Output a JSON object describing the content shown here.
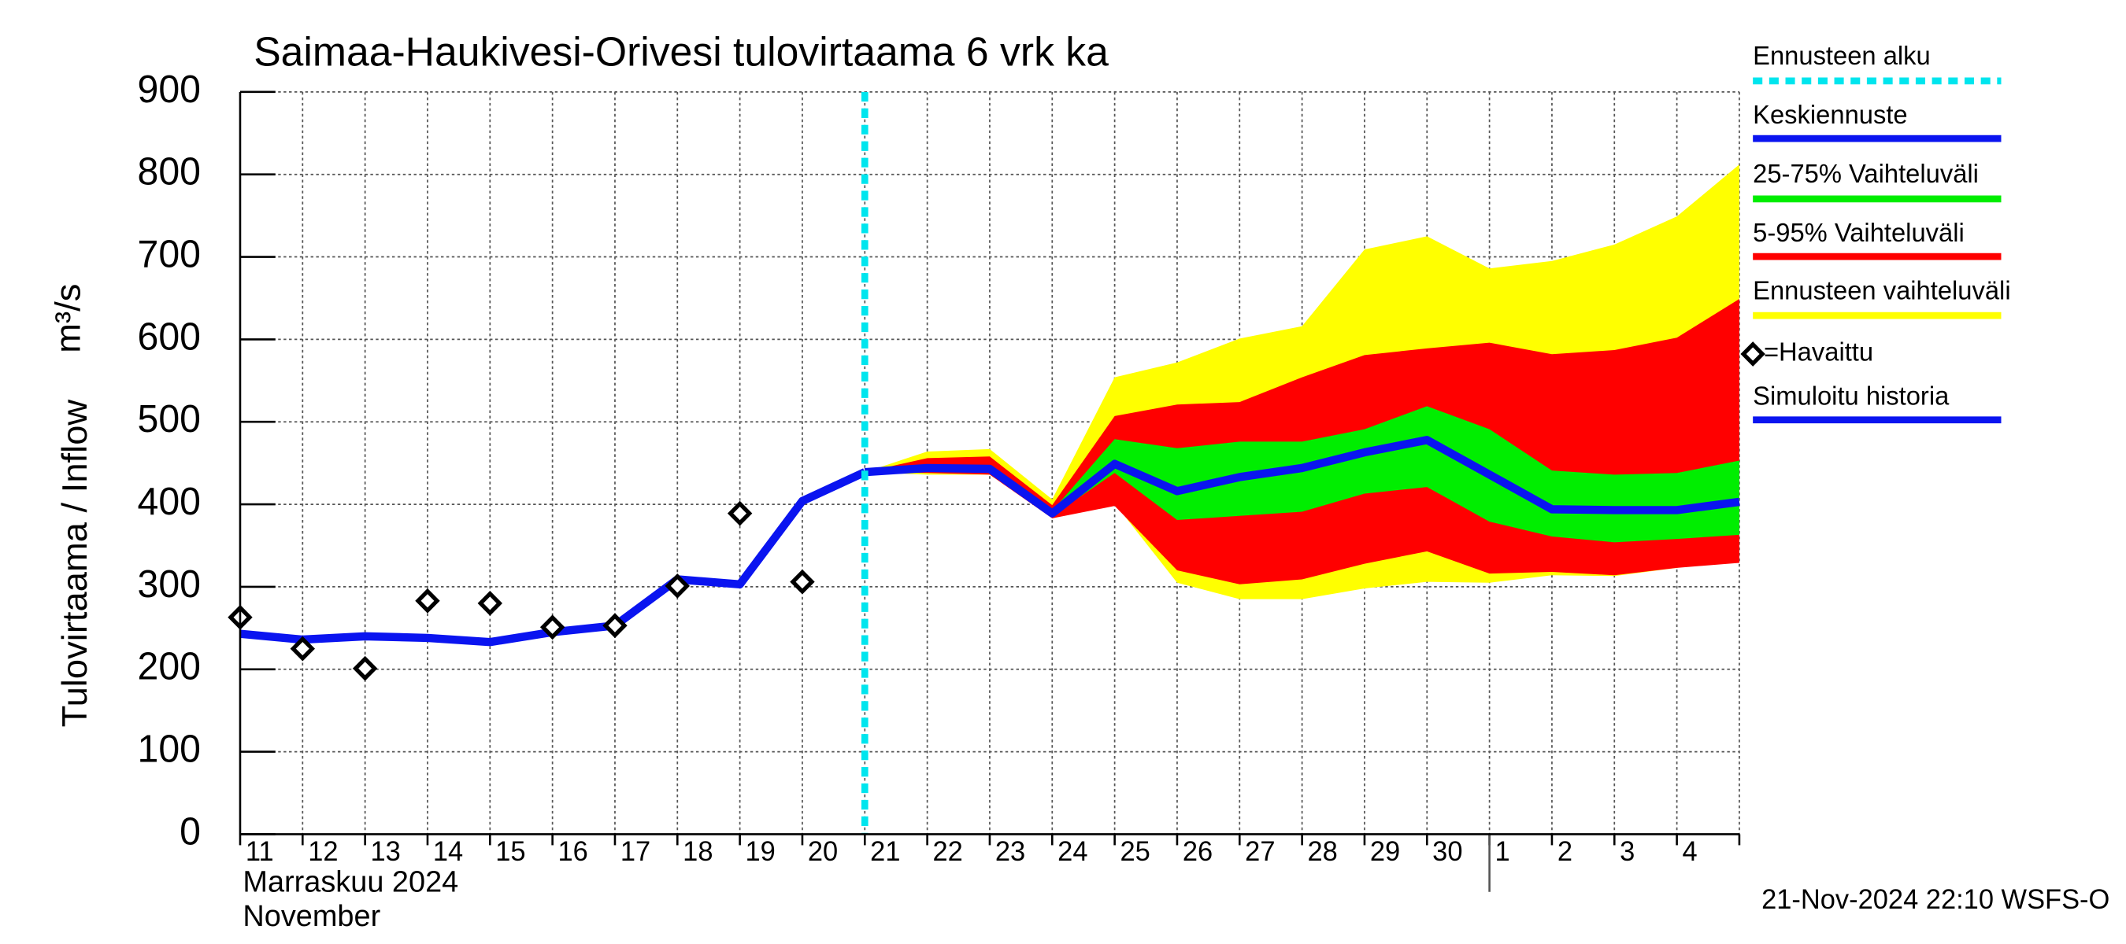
{
  "chart_data": {
    "type": "line",
    "title": "Saimaa-Haukivesi-Orivesi tulovirtaama  6 vrk ka",
    "y_label": "Tulovirtaama / Inflow",
    "y_unit": "m³/s",
    "month_label": "Marraskuu 2024",
    "month_label_en": "November",
    "footer": "21-Nov-2024 22:10 WSFS-O",
    "categories": [
      "11",
      "12",
      "13",
      "14",
      "15",
      "16",
      "17",
      "18",
      "19",
      "20",
      "21",
      "22",
      "23",
      "24",
      "25",
      "26",
      "27",
      "28",
      "29",
      "30",
      "1",
      "2",
      "3",
      "4",
      null
    ],
    "ylim": [
      0,
      900
    ],
    "yticks": [
      0,
      100,
      200,
      300,
      400,
      500,
      600,
      700,
      800,
      900
    ],
    "grid": true,
    "forecast_start": {
      "name": "Ennusteen alku",
      "color": "#00e5ee",
      "x": 10
    },
    "median": {
      "name": "Keskiennuste",
      "color": "#0a14f0",
      "values": [
        null,
        null,
        null,
        null,
        null,
        null,
        null,
        null,
        null,
        null,
        439,
        444,
        443,
        389,
        449,
        416,
        433,
        444,
        463,
        478,
        436,
        394,
        393,
        393,
        403
      ]
    },
    "bands": [
      {
        "name": "Ennusteen vaihteluväli",
        "color": "#ffff00",
        "high": [
          null,
          null,
          null,
          null,
          null,
          null,
          null,
          null,
          null,
          null,
          439,
          464,
          467,
          406,
          554,
          572,
          601,
          616,
          709,
          725,
          686,
          695,
          715,
          749,
          812
        ],
        "low": [
          null,
          null,
          null,
          null,
          null,
          null,
          null,
          null,
          null,
          null,
          439,
          436,
          436,
          384,
          401,
          305,
          285,
          285,
          298,
          306,
          305,
          314,
          313,
          323,
          336
        ]
      },
      {
        "name": "5-95% Vaihteluväli",
        "color": "#ff0000",
        "high": [
          null,
          null,
          null,
          null,
          null,
          null,
          null,
          null,
          null,
          null,
          439,
          456,
          458,
          399,
          507,
          521,
          524,
          554,
          581,
          589,
          596,
          582,
          587,
          602,
          649
        ],
        "low": [
          null,
          null,
          null,
          null,
          null,
          null,
          null,
          null,
          null,
          null,
          439,
          438,
          436,
          383,
          398,
          320,
          303,
          309,
          328,
          343,
          316,
          318,
          314,
          323,
          329
        ]
      },
      {
        "name": "25-75% Vaihteluväli",
        "color": "#00ee00",
        "high": [
          null,
          null,
          null,
          null,
          null,
          null,
          null,
          null,
          null,
          null,
          439,
          444,
          443,
          392,
          479,
          468,
          476,
          476,
          491,
          519,
          491,
          441,
          436,
          438,
          453
        ],
        "low": [
          null,
          null,
          null,
          null,
          null,
          null,
          null,
          null,
          null,
          null,
          439,
          444,
          443,
          386,
          438,
          381,
          386,
          391,
          413,
          421,
          379,
          361,
          354,
          358,
          363
        ]
      }
    ],
    "observed": {
      "name": "=Havaittu",
      "color": "#000000",
      "values": [
        263,
        225,
        201,
        283,
        280,
        251,
        253,
        301,
        389,
        306,
        null,
        null,
        null,
        null,
        null,
        null,
        null,
        null,
        null,
        null,
        null,
        null,
        null,
        null,
        null
      ]
    },
    "history": {
      "name": "Simuloitu historia",
      "color": "#0a14f0",
      "values": [
        243,
        236,
        240,
        238,
        233,
        245,
        253,
        309,
        303,
        404,
        439,
        null,
        null,
        null,
        null,
        null,
        null,
        null,
        null,
        null,
        null,
        null,
        null,
        null,
        null
      ]
    }
  }
}
